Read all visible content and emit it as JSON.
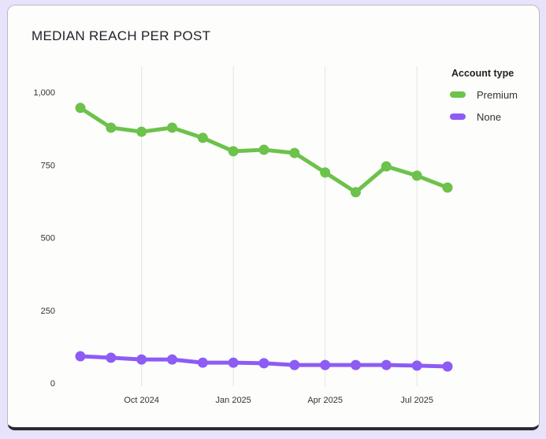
{
  "chart_data": {
    "type": "line",
    "title": "MEDIAN REACH PER POST",
    "xlabel": "",
    "ylabel": "",
    "x": [
      "Aug 2024",
      "Sep 2024",
      "Oct 2024",
      "Nov 2024",
      "Dec 2024",
      "Jan 2025",
      "Feb 2025",
      "Mar 2025",
      "Apr 2025",
      "May 2025",
      "Jun 2025",
      "Jul 2025",
      "Aug 2025"
    ],
    "x_tick_labels": [
      "Oct 2024",
      "Jan 2025",
      "Apr 2025",
      "Jul 2025"
    ],
    "x_tick_index": [
      2,
      5,
      8,
      11
    ],
    "y_tick_labels": [
      "1,000",
      "750",
      "500",
      "250",
      "0"
    ],
    "y_ticks": [
      1000,
      750,
      500,
      250,
      0
    ],
    "ylim": [
      0,
      1000
    ],
    "grid": "vertical",
    "legend": {
      "title": "Account type",
      "placement": "top-right"
    },
    "series": [
      {
        "name": "Premium",
        "color": "#6cc24a",
        "values": [
          946,
          878,
          864,
          878,
          843,
          797,
          802,
          791,
          724,
          656,
          745,
          713,
          672
        ]
      },
      {
        "name": "None",
        "color": "#8c5cf5",
        "values": [
          92,
          87,
          81,
          81,
          70,
          70,
          68,
          62,
          62,
          62,
          62,
          60,
          57
        ]
      }
    ]
  }
}
